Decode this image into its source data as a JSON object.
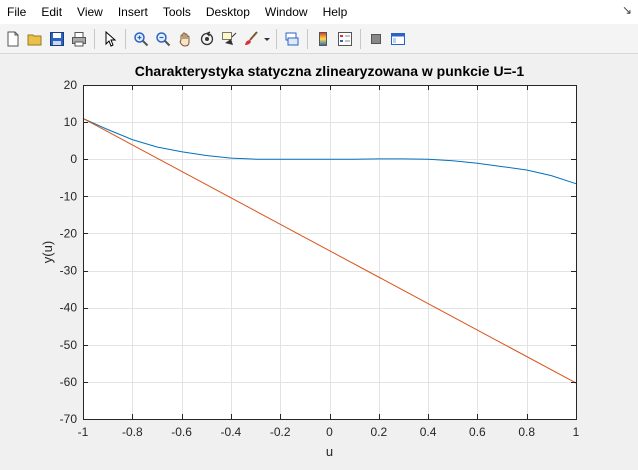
{
  "menu": {
    "items": [
      "File",
      "Edit",
      "View",
      "Insert",
      "Tools",
      "Desktop",
      "Window",
      "Help"
    ],
    "corner_glyph": "↘"
  },
  "toolbar": {
    "icons": [
      "new-figure-icon",
      "open-file-icon",
      "save-icon",
      "print-icon",
      "pointer-icon",
      "zoom-in-icon",
      "zoom-out-icon",
      "pan-icon",
      "rotate-3d-icon",
      "data-cursor-icon",
      "brush-icon",
      "link-plot-icon",
      "colorbar-icon",
      "legend-icon",
      "hide-plot-tools-icon",
      "show-plot-tools-icon"
    ],
    "colors": {
      "blue": "#2b63c4",
      "gray": "#777777"
    }
  },
  "chart_data": {
    "type": "line",
    "title": "Charakterystyka statyczna zlinearyzowana w punkcie U=-1",
    "xlabel": "u",
    "ylabel": "y(u)",
    "xlim": [
      -1,
      1
    ],
    "ylim": [
      -70,
      20
    ],
    "xticks": [
      -1,
      -0.8,
      -0.6,
      -0.4,
      -0.2,
      0,
      0.2,
      0.4,
      0.6,
      0.8,
      1
    ],
    "xtick_labels": [
      "-1",
      "-0.8",
      "-0.6",
      "-0.4",
      "-0.2",
      "0",
      "0.2",
      "0.4",
      "0.6",
      "0.8",
      "1"
    ],
    "yticks": [
      20,
      10,
      0,
      -10,
      -20,
      -30,
      -40,
      -50,
      -60,
      -70
    ],
    "ytick_labels": [
      "20",
      "10",
      "0",
      "-10",
      "-20",
      "-30",
      "-40",
      "-50",
      "-60",
      "-70"
    ],
    "grid": true,
    "series": [
      {
        "color": "#0072bd",
        "x": [
          -1,
          -0.9,
          -0.8,
          -0.7,
          -0.6,
          -0.5,
          -0.4,
          -0.3,
          -0.2,
          -0.1,
          0,
          0.1,
          0.2,
          0.3,
          0.4,
          0.5,
          0.6,
          0.7,
          0.8,
          0.9,
          1
        ],
        "y": [
          11,
          8,
          5.3,
          3.3,
          2,
          1,
          0.3,
          0,
          0,
          0,
          0,
          0,
          0.1,
          0.1,
          0,
          -0.4,
          -1.1,
          -2,
          -2.9,
          -4.4,
          -6.6
        ]
      },
      {
        "color": "#d95319",
        "x": [
          -1,
          1
        ],
        "y": [
          11,
          -60.3
        ]
      }
    ]
  }
}
